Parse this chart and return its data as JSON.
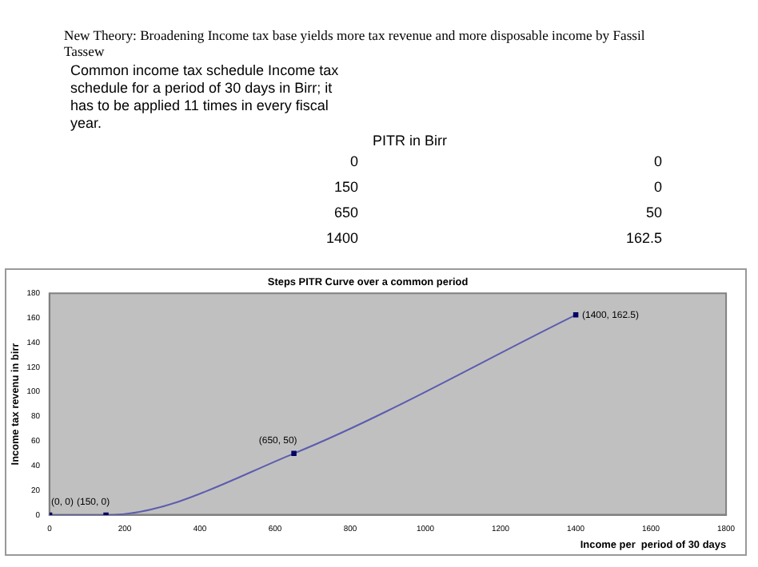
{
  "chart_data": {
    "type": "line",
    "title": "Steps PITR Curve over a common period",
    "xlabel": "Income per  period of 30 days",
    "ylabel": "Income tax revenu in birr",
    "annotations": [
      "New Theory: Broadening Income tax base yields more tax revenue and more disposable income by Fassil Tassew",
      "Common income tax schedule Income tax schedule for a period of 30 days in Birr; it has to be  applied 11 times in every fiscal year.",
      "PITR in Birr",
      "0",
      "0",
      "150",
      "0",
      "650",
      "50",
      "1400",
      "162.5"
    ],
    "x": [
      0,
      150,
      650,
      1400
    ],
    "series": [
      {
        "color": "#5c5cb0",
        "values": [
          0,
          0,
          50,
          162.5
        ],
        "value_labels": [
          "(0, 0)",
          "(150, 0)",
          "(650, 50)",
          "(1400, 162.5)"
        ]
      }
    ],
    "xlim": [
      0,
      1800
    ],
    "xticks": [
      0,
      200,
      400,
      600,
      800,
      1000,
      1200,
      1400,
      1600,
      1800
    ],
    "ylim": [
      0,
      180
    ],
    "yticks": [
      0,
      20,
      40,
      60,
      80,
      100,
      120,
      140,
      160,
      180
    ],
    "grid": false,
    "legend": false,
    "marker": "square",
    "line_style": "solid",
    "data_labels": false
  }
}
